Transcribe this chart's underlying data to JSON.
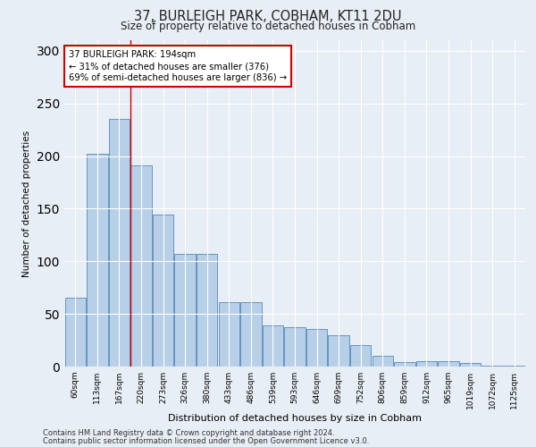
{
  "title1": "37, BURLEIGH PARK, COBHAM, KT11 2DU",
  "title2": "Size of property relative to detached houses in Cobham",
  "xlabel": "Distribution of detached houses by size in Cobham",
  "ylabel": "Number of detached properties",
  "footer1": "Contains HM Land Registry data © Crown copyright and database right 2024.",
  "footer2": "Contains public sector information licensed under the Open Government Licence v3.0.",
  "categories": [
    "60sqm",
    "113sqm",
    "167sqm",
    "220sqm",
    "273sqm",
    "326sqm",
    "380sqm",
    "433sqm",
    "486sqm",
    "539sqm",
    "593sqm",
    "646sqm",
    "699sqm",
    "752sqm",
    "806sqm",
    "859sqm",
    "912sqm",
    "965sqm",
    "1019sqm",
    "1072sqm",
    "1125sqm"
  ],
  "values": [
    65,
    202,
    235,
    191,
    144,
    107,
    107,
    61,
    61,
    39,
    37,
    36,
    30,
    20,
    10,
    4,
    5,
    5,
    3,
    1,
    1
  ],
  "bar_color": "#b8cfe8",
  "bar_edge_color": "#5588bb",
  "annotation_text_line1": "37 BURLEIGH PARK: 194sqm",
  "annotation_text_line2": "← 31% of detached houses are smaller (376)",
  "annotation_text_line3": "69% of semi-detached houses are larger (836) →",
  "annotation_box_color": "#ffffff",
  "annotation_border_color": "#cc0000",
  "red_line_x": 2.5,
  "ylim": [
    0,
    310
  ],
  "background_color": "#e8eef5",
  "plot_bg_color": "#e8eef5"
}
